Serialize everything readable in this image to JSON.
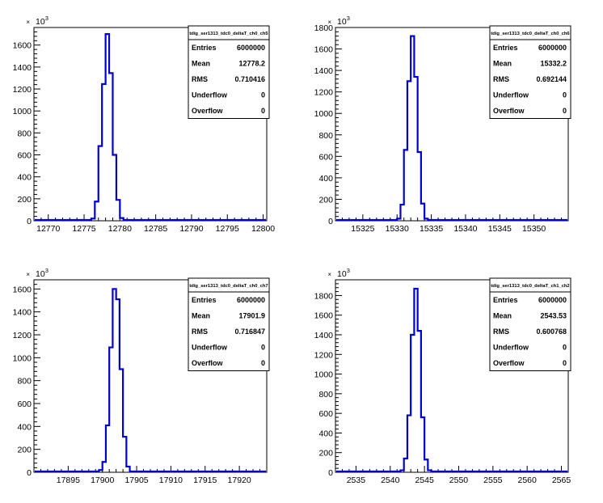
{
  "chart_data": [
    {
      "type": "histogram",
      "title": "tdig_ser1313_tdc0_deltaT_ch0_ch5",
      "y_multiplier_label": "10",
      "y_multiplier_exp": "3",
      "xlim": [
        12768,
        12800.5
      ],
      "ylim": [
        0,
        1760
      ],
      "xticks": [
        12770,
        12775,
        12780,
        12785,
        12790,
        12795,
        12800
      ],
      "yticks": [
        0,
        200,
        400,
        600,
        800,
        1000,
        1200,
        1400,
        1600
      ],
      "bin_edges": [
        12776.0,
        12776.5,
        12777.0,
        12777.5,
        12778.0,
        12778.5,
        12779.0,
        12779.5,
        12780.0,
        12780.5
      ],
      "bin_values": [
        20,
        175,
        680,
        1245,
        1700,
        1345,
        600,
        190,
        25
      ],
      "stats": [
        {
          "label": "Entries",
          "value": "6000000"
        },
        {
          "label": "Mean",
          "value": "12778.2"
        },
        {
          "label": "RMS",
          "value": "0.710416"
        },
        {
          "label": "Underflow",
          "value": "0"
        },
        {
          "label": "Overflow",
          "value": "0"
        }
      ]
    },
    {
      "type": "histogram",
      "title": "tdig_ser1313_tdc0_deltaT_ch0_ch6",
      "y_multiplier_label": "10",
      "y_multiplier_exp": "3",
      "xlim": [
        15321,
        15355
      ],
      "ylim": [
        0,
        1800
      ],
      "xticks": [
        15325,
        15330,
        15335,
        15340,
        15345,
        15350
      ],
      "yticks": [
        0,
        200,
        400,
        600,
        800,
        1000,
        1200,
        1400,
        1600,
        1800
      ],
      "bin_edges": [
        15330.0,
        15330.5,
        15331.0,
        15331.5,
        15332.0,
        15332.5,
        15333.0,
        15333.5,
        15334.0,
        15334.5
      ],
      "bin_values": [
        20,
        150,
        660,
        1300,
        1720,
        1340,
        640,
        160,
        20
      ],
      "stats": [
        {
          "label": "Entries",
          "value": "6000000"
        },
        {
          "label": "Mean",
          "value": "15332.2"
        },
        {
          "label": "RMS",
          "value": "0.692144"
        },
        {
          "label": "Underflow",
          "value": "0"
        },
        {
          "label": "Overflow",
          "value": "0"
        }
      ]
    },
    {
      "type": "histogram",
      "title": "tdig_ser1313_tdc0_deltaT_ch0_ch7",
      "y_multiplier_label": "10",
      "y_multiplier_exp": "3",
      "xlim": [
        17890,
        17924
      ],
      "ylim": [
        0,
        1680
      ],
      "xticks": [
        17895,
        17900,
        17905,
        17910,
        17915,
        17920
      ],
      "yticks": [
        0,
        200,
        400,
        600,
        800,
        1000,
        1200,
        1400,
        1600
      ],
      "bin_edges": [
        17899.5,
        17900.0,
        17900.5,
        17901.0,
        17901.5,
        17902.0,
        17902.5,
        17903.0,
        17903.5,
        17904.0
      ],
      "bin_values": [
        20,
        90,
        410,
        1090,
        1600,
        1510,
        900,
        310,
        50
      ],
      "stats": [
        {
          "label": "Entries",
          "value": "6000000"
        },
        {
          "label": "Mean",
          "value": "17901.9"
        },
        {
          "label": "RMS",
          "value": "0.716847"
        },
        {
          "label": "Underflow",
          "value": "0"
        },
        {
          "label": "Overflow",
          "value": "0"
        }
      ]
    },
    {
      "type": "histogram",
      "title": "tdig_ser1313_tdc0_deltaT_ch1_ch2",
      "y_multiplier_label": "10",
      "y_multiplier_exp": "3",
      "xlim": [
        2532,
        2566
      ],
      "ylim": [
        0,
        1960
      ],
      "xticks": [
        2535,
        2540,
        2545,
        2550,
        2555,
        2560,
        2565
      ],
      "yticks": [
        0,
        200,
        400,
        600,
        800,
        1000,
        1200,
        1400,
        1600,
        1800
      ],
      "bin_edges": [
        2541.5,
        2542.0,
        2542.5,
        2543.0,
        2543.5,
        2544.0,
        2544.5,
        2545.0,
        2545.5,
        2546.0
      ],
      "bin_values": [
        20,
        140,
        580,
        1400,
        1870,
        1440,
        560,
        130,
        20
      ],
      "stats": [
        {
          "label": "Entries",
          "value": "6000000"
        },
        {
          "label": "Mean",
          "value": "2543.53"
        },
        {
          "label": "RMS",
          "value": "0.600768"
        },
        {
          "label": "Underflow",
          "value": "0"
        },
        {
          "label": "Overflow",
          "value": "0"
        }
      ]
    }
  ]
}
